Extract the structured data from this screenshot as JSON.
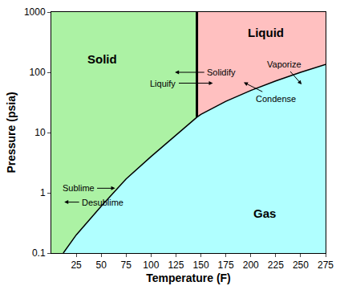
{
  "chart_data": {
    "type": "area",
    "x_label": "Temperature (F)",
    "y_label": "Pressure (psia)",
    "xlim": [
      0,
      275
    ],
    "xticks": [
      25,
      50,
      75,
      100,
      125,
      150,
      175,
      200,
      225,
      250,
      275
    ],
    "ylim": [
      0.1,
      1000
    ],
    "yticks": [
      0.1,
      1,
      10,
      100,
      1000
    ],
    "log": "y",
    "grid": false,
    "series": [
      {
        "x": [
          12,
          25,
          50,
          75,
          100,
          125,
          146
        ],
        "values": [
          0.1,
          0.2,
          0.6,
          1.7,
          4,
          9,
          18
        ],
        "color": "#000000"
      },
      {
        "x": [
          146,
          150,
          175,
          200,
          225,
          250,
          275
        ],
        "values": [
          18,
          20,
          33,
          50,
          72,
          100,
          135
        ],
        "color": "#000000"
      },
      {
        "x": [
          146,
          146
        ],
        "values": [
          18,
          1000
        ],
        "color": "#000000"
      }
    ],
    "regions": [
      {
        "label": "Solid",
        "color": "#acf2a4"
      },
      {
        "label": "Liquid",
        "color": "#ffc0c0"
      },
      {
        "label": "Gas",
        "color": "#b0ffff"
      }
    ],
    "annotations": [
      "Solidify",
      "Liquify",
      "Vaporize",
      "Condense",
      "Sublime",
      "Desublime"
    ]
  }
}
